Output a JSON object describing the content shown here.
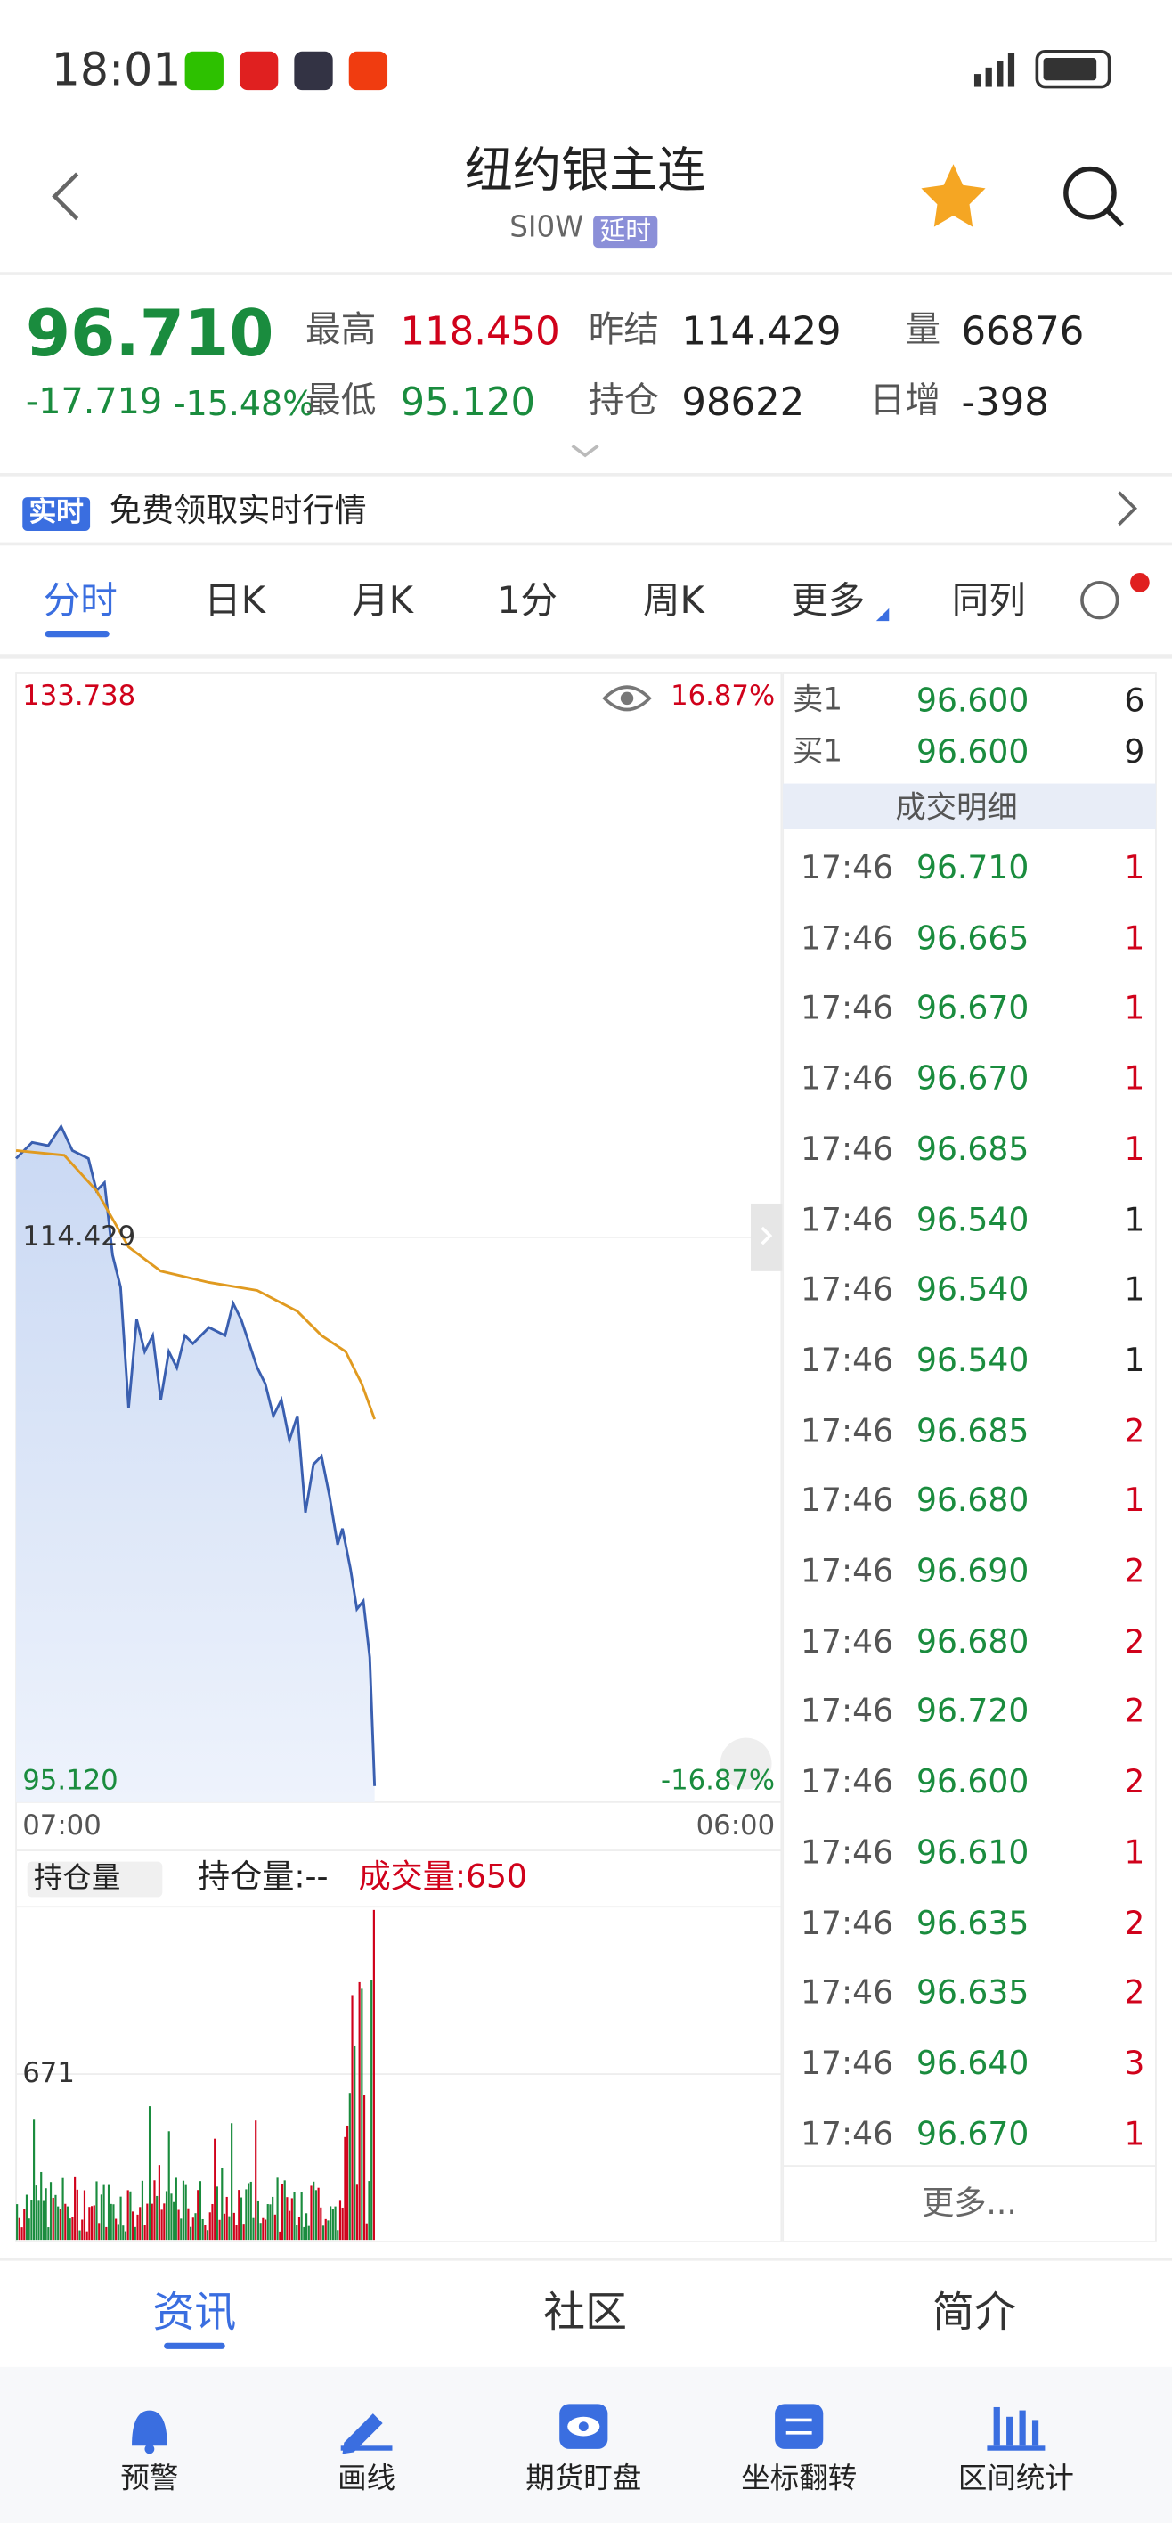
{
  "status": {
    "time": "18:01"
  },
  "header": {
    "title": "纽约银主连",
    "code": "SI0W",
    "tag": "延时"
  },
  "quote": {
    "price": "96.710",
    "change": "-17.719",
    "pct": "-15.48%",
    "stats": [
      {
        "label": "最高",
        "value": "118.450",
        "color": "#d0021b"
      },
      {
        "label": "昨结",
        "value": "114.429",
        "color": "#222"
      },
      {
        "label": "量",
        "value": "66876",
        "color": "#222"
      },
      {
        "label": "最低",
        "value": "95.120",
        "color": "#1a8c3e"
      },
      {
        "label": "持仓",
        "value": "98622",
        "color": "#222"
      },
      {
        "label": "日增",
        "value": "-398",
        "color": "#222"
      }
    ]
  },
  "banner": {
    "tag": "实时",
    "text": "免费领取实时行情"
  },
  "tabs": [
    "分时",
    "日K",
    "月K",
    "1分",
    "周K",
    "更多",
    "同列"
  ],
  "chart": {
    "top": "133.738",
    "top_pct": "16.87%",
    "mid": "114.429",
    "bottom": "95.120",
    "bottom_pct": "-16.87%",
    "x_start": "07:00",
    "x_end": "06:00"
  },
  "volume": {
    "selector": "持仓量",
    "hold": "持仓量:--",
    "vol": "成交量:650",
    "tick": "671"
  },
  "orderbook": [
    {
      "label": "卖1",
      "price": "96.600",
      "qty": "6"
    },
    {
      "label": "买1",
      "price": "96.600",
      "qty": "9"
    }
  ],
  "trades_title": "成交明细",
  "trades": [
    {
      "time": "17:46",
      "price": "96.710",
      "qty": "1",
      "color": "#d0021b"
    },
    {
      "time": "17:46",
      "price": "96.665",
      "qty": "1",
      "color": "#d0021b"
    },
    {
      "time": "17:46",
      "price": "96.670",
      "qty": "1",
      "color": "#d0021b"
    },
    {
      "time": "17:46",
      "price": "96.670",
      "qty": "1",
      "color": "#d0021b"
    },
    {
      "time": "17:46",
      "price": "96.685",
      "qty": "1",
      "color": "#d0021b"
    },
    {
      "time": "17:46",
      "price": "96.540",
      "qty": "1",
      "color": "#222"
    },
    {
      "time": "17:46",
      "price": "96.540",
      "qty": "1",
      "color": "#222"
    },
    {
      "time": "17:46",
      "price": "96.540",
      "qty": "1",
      "color": "#222"
    },
    {
      "time": "17:46",
      "price": "96.685",
      "qty": "2",
      "color": "#d0021b"
    },
    {
      "time": "17:46",
      "price": "96.680",
      "qty": "1",
      "color": "#d0021b"
    },
    {
      "time": "17:46",
      "price": "96.690",
      "qty": "2",
      "color": "#d0021b"
    },
    {
      "time": "17:46",
      "price": "96.680",
      "qty": "2",
      "color": "#d0021b"
    },
    {
      "time": "17:46",
      "price": "96.720",
      "qty": "2",
      "color": "#d0021b"
    },
    {
      "time": "17:46",
      "price": "96.600",
      "qty": "2",
      "color": "#d0021b"
    },
    {
      "time": "17:46",
      "price": "96.610",
      "qty": "1",
      "color": "#d0021b"
    },
    {
      "time": "17:46",
      "price": "96.635",
      "qty": "2",
      "color": "#d0021b"
    },
    {
      "time": "17:46",
      "price": "96.635",
      "qty": "2",
      "color": "#d0021b"
    },
    {
      "time": "17:46",
      "price": "96.640",
      "qty": "3",
      "color": "#d0021b"
    },
    {
      "time": "17:46",
      "price": "96.670",
      "qty": "1",
      "color": "#d0021b"
    }
  ],
  "more": "更多...",
  "bottom_tabs": [
    "资讯",
    "社区",
    "简介"
  ],
  "toolbar": [
    "预警",
    "画线",
    "期货盯盘",
    "坐标翻转",
    "区间统计"
  ]
}
